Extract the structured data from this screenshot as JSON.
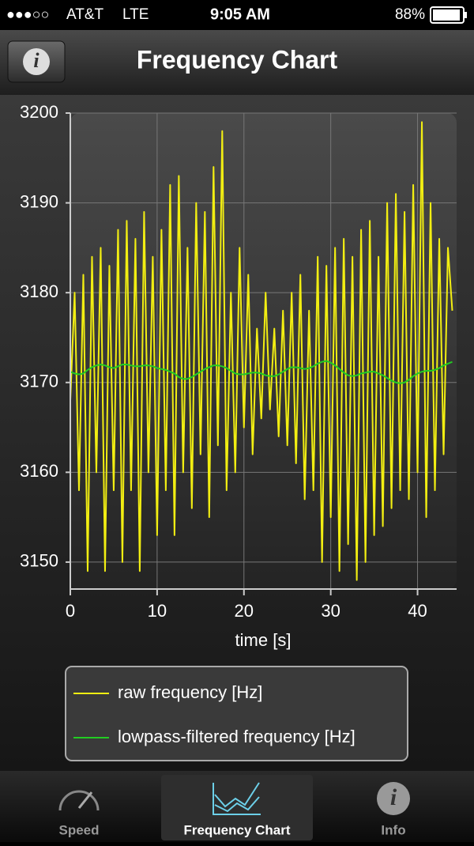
{
  "status_bar": {
    "signal": "●●●○○",
    "carrier": "AT&T",
    "network": "LTE",
    "time": "9:05 AM",
    "battery": "88%"
  },
  "nav_bar": {
    "title": "Frequency Chart",
    "info_button": "i"
  },
  "chart_data": {
    "type": "line",
    "x_label": "time [s]",
    "x": [
      0,
      0.5,
      1,
      1.5,
      2,
      2.5,
      3,
      3.5,
      4,
      4.5,
      5,
      5.5,
      6,
      6.5,
      7,
      7.5,
      8,
      8.5,
      9,
      9.5,
      10,
      10.5,
      11,
      11.5,
      12,
      12.5,
      13,
      13.5,
      14,
      14.5,
      15,
      15.5,
      16,
      16.5,
      17,
      17.5,
      18,
      18.5,
      19,
      19.5,
      20,
      20.5,
      21,
      21.5,
      22,
      22.5,
      23,
      23.5,
      24,
      24.5,
      25,
      25.5,
      26,
      26.5,
      27,
      27.5,
      28,
      28.5,
      29,
      29.5,
      30,
      30.5,
      31,
      31.5,
      32,
      32.5,
      33,
      33.5,
      34,
      34.5,
      35,
      35.5,
      36,
      36.5,
      37,
      37.5,
      38,
      38.5,
      39,
      39.5,
      40,
      40.5,
      41,
      41.5,
      42,
      42.5,
      43,
      43.5,
      44
    ],
    "series": [
      {
        "name": "raw frequency [Hz]",
        "color": "#f2ee12",
        "values": [
          3168,
          3180,
          3158,
          3182,
          3149,
          3184,
          3160,
          3185,
          3149,
          3183,
          3158,
          3187,
          3150,
          3188,
          3158,
          3186,
          3149,
          3189,
          3160,
          3184,
          3153,
          3187,
          3158,
          3192,
          3153,
          3193,
          3160,
          3185,
          3156,
          3190,
          3162,
          3189,
          3155,
          3194,
          3163,
          3198,
          3158,
          3180,
          3160,
          3185,
          3165,
          3182,
          3162,
          3176,
          3166,
          3180,
          3167,
          3176,
          3164,
          3178,
          3163,
          3180,
          3161,
          3182,
          3157,
          3178,
          3158,
          3184,
          3150,
          3183,
          3155,
          3185,
          3149,
          3186,
          3152,
          3184,
          3148,
          3187,
          3150,
          3188,
          3153,
          3184,
          3154,
          3190,
          3156,
          3191,
          3158,
          3189,
          3157,
          3192,
          3160,
          3199,
          3155,
          3190,
          3158,
          3186,
          3162,
          3185,
          3178
        ]
      },
      {
        "name": "lowpass-filtered frequency [Hz]",
        "color": "#22cc22",
        "values": [
          3171.2,
          3171,
          3170.9,
          3171,
          3171.4,
          3171.7,
          3171.9,
          3172,
          3171.9,
          3171.7,
          3171.6,
          3171.8,
          3172,
          3172,
          3171.9,
          3171.8,
          3171.8,
          3171.9,
          3171.9,
          3171.8,
          3171.6,
          3171.5,
          3171.4,
          3171.2,
          3171,
          3170.6,
          3170.4,
          3170.4,
          3170.6,
          3170.9,
          3171.2,
          3171.5,
          3171.7,
          3171.9,
          3171.9,
          3171.8,
          3171.6,
          3171.3,
          3171,
          3170.9,
          3170.9,
          3171,
          3171.1,
          3171.1,
          3171,
          3170.8,
          3170.7,
          3170.7,
          3170.9,
          3171.2,
          3171.5,
          3171.7,
          3171.7,
          3171.6,
          3171.5,
          3171.6,
          3171.8,
          3172.1,
          3172.3,
          3172.4,
          3172.2,
          3171.9,
          3171.5,
          3171.1,
          3170.8,
          3170.7,
          3170.8,
          3171,
          3171.1,
          3171.2,
          3171.2,
          3171,
          3170.8,
          3170.5,
          3170.2,
          3170,
          3169.9,
          3170,
          3170.3,
          3170.7,
          3171,
          3171.2,
          3171.3,
          3171.3,
          3171.4,
          3171.6,
          3171.9,
          3172.1,
          3172.3
        ]
      }
    ],
    "xlim": [
      0,
      44.5
    ],
    "xticks": [
      0,
      10,
      20,
      30,
      40
    ],
    "ylim": [
      3147,
      3200
    ],
    "yticks": [
      3150,
      3160,
      3170,
      3180,
      3190,
      3200
    ],
    "grid": true
  },
  "tab_bar": {
    "tabs": [
      {
        "label": "Speed",
        "selected": false
      },
      {
        "label": "Frequency Chart",
        "selected": true
      },
      {
        "label": "Info",
        "selected": false
      }
    ]
  }
}
